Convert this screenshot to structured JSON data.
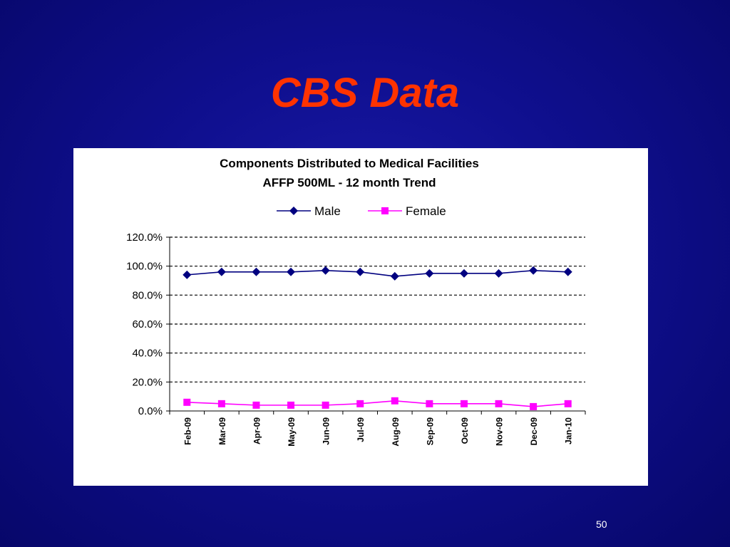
{
  "slide": {
    "title": "CBS Data",
    "page_number": "50"
  },
  "colors": {
    "background": "#0f0f8e",
    "title": "#ff3300",
    "male": "#000080",
    "female": "#ff00ff"
  },
  "chart_data": {
    "type": "line",
    "title": "Components Distributed to Medical Facilities",
    "subtitle": "AFFP 500ML - 12 month Trend",
    "categories": [
      "Feb-09",
      "Mar-09",
      "Apr-09",
      "May-09",
      "Jun-09",
      "Jul-09",
      "Aug-09",
      "Sep-09",
      "Oct-09",
      "Nov-09",
      "Dec-09",
      "Jan-10"
    ],
    "series": [
      {
        "name": "Male",
        "color": "#000080",
        "marker": "diamond",
        "values": [
          94,
          96,
          96,
          96,
          97,
          96,
          93,
          95,
          95,
          95,
          97,
          96
        ]
      },
      {
        "name": "Female",
        "color": "#ff00ff",
        "marker": "square",
        "values": [
          6,
          5,
          4,
          4,
          4,
          5,
          7,
          5,
          5,
          5,
          3,
          5
        ]
      }
    ],
    "yticks": [
      "0.0%",
      "20.0%",
      "40.0%",
      "60.0%",
      "80.0%",
      "100.0%",
      "120.0%"
    ],
    "ylim": [
      0,
      120
    ],
    "grid": true,
    "legend": "top-center"
  }
}
